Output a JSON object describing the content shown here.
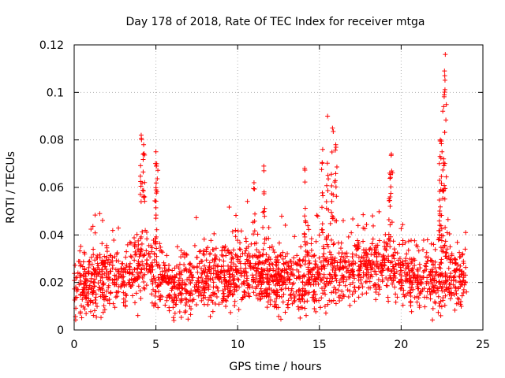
{
  "chart_data": {
    "type": "scatter",
    "title": "Day 178 of 2018, Rate Of TEC Index for receiver mtga",
    "xlabel": "GPS time / hours",
    "ylabel": "ROTI / TECUs",
    "xlim": [
      0,
      25
    ],
    "ylim": [
      0,
      0.12
    ],
    "xticks": [
      0,
      5,
      10,
      15,
      20,
      25
    ],
    "xtick_labels": [
      "0",
      "5",
      "10",
      "15",
      "20",
      "25"
    ],
    "yticks": [
      0,
      0.02,
      0.04,
      0.06,
      0.08,
      0.1,
      0.12
    ],
    "ytick_labels": [
      "0",
      "0.02",
      "0.04",
      "0.06",
      "0.08",
      "0.1",
      "0.12"
    ],
    "grid": true,
    "marker": "+",
    "color": "#ff0000",
    "data_range": {
      "x": [
        0,
        24
      ],
      "y": [
        0.004,
        0.116
      ]
    },
    "baseline_points": [
      [
        0,
        0.018
      ],
      [
        1,
        0.019
      ],
      [
        2,
        0.022
      ],
      [
        3,
        0.021
      ],
      [
        4,
        0.028
      ],
      [
        5,
        0.024
      ],
      [
        6,
        0.018
      ],
      [
        7,
        0.019
      ],
      [
        8,
        0.021
      ],
      [
        9,
        0.022
      ],
      [
        10,
        0.023
      ],
      [
        11,
        0.024
      ],
      [
        12,
        0.022
      ],
      [
        13,
        0.021
      ],
      [
        14,
        0.022
      ],
      [
        15,
        0.022
      ],
      [
        16,
        0.024
      ],
      [
        17,
        0.026
      ],
      [
        18,
        0.028
      ],
      [
        19,
        0.027
      ],
      [
        20,
        0.024
      ],
      [
        21,
        0.022
      ],
      [
        22,
        0.021
      ],
      [
        23,
        0.022
      ],
      [
        24,
        0.02
      ]
    ],
    "spikes": [
      {
        "x": 4.1,
        "y": 0.082
      },
      {
        "x": 4.25,
        "y": 0.078
      },
      {
        "x": 5.0,
        "y": 0.075
      },
      {
        "x": 5.05,
        "y": 0.07
      },
      {
        "x": 11.6,
        "y": 0.069
      },
      {
        "x": 11.0,
        "y": 0.062
      },
      {
        "x": 14.1,
        "y": 0.068
      },
      {
        "x": 15.2,
        "y": 0.076
      },
      {
        "x": 15.5,
        "y": 0.09
      },
      {
        "x": 15.8,
        "y": 0.085
      },
      {
        "x": 16.0,
        "y": 0.078
      },
      {
        "x": 19.4,
        "y": 0.074
      },
      {
        "x": 19.3,
        "y": 0.066
      },
      {
        "x": 22.4,
        "y": 0.08
      },
      {
        "x": 22.5,
        "y": 0.075
      },
      {
        "x": 22.6,
        "y": 0.094
      },
      {
        "x": 22.65,
        "y": 0.109
      },
      {
        "x": 22.7,
        "y": 0.116
      },
      {
        "x": 22.35,
        "y": 0.063
      }
    ],
    "sample_count": 2200,
    "seed": 178
  }
}
